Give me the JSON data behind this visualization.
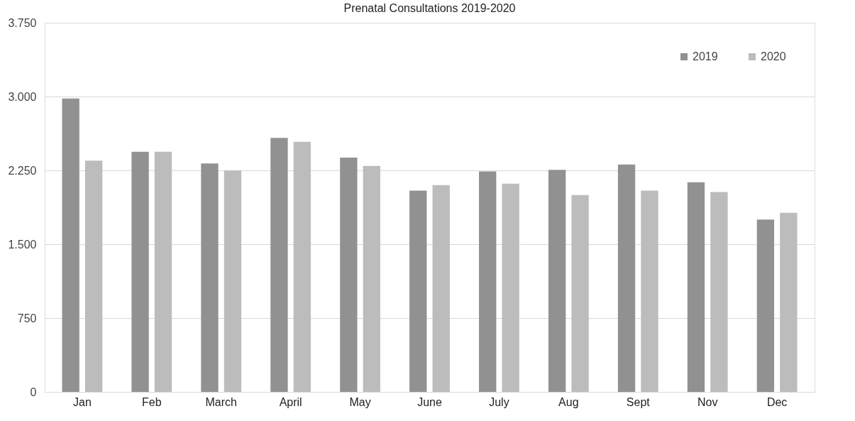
{
  "chart_data": {
    "type": "bar",
    "title": "Prenatal Consultations 2019-2020",
    "categories": [
      "Jan",
      "Feb",
      "March",
      "April",
      "May",
      "June",
      "July",
      "Aug",
      "Sept",
      "Nov",
      "Dec"
    ],
    "series": [
      {
        "name": "2019",
        "color": "#919191",
        "values": [
          2980,
          2440,
          2320,
          2580,
          2380,
          2045,
          2240,
          2255,
          2310,
          2130,
          1750
        ]
      },
      {
        "name": "2020",
        "color": "#bcbcbc",
        "values": [
          2350,
          2440,
          2250,
          2540,
          2295,
          2100,
          2115,
          2000,
          2045,
          2030,
          1820
        ]
      }
    ],
    "ylim": [
      0,
      3750
    ],
    "yticks": [
      0,
      750,
      {
        "value": 1500,
        "label": "1.500"
      },
      {
        "value": 2250,
        "label": "2.250"
      },
      {
        "value": 3000,
        "label": "3.000"
      },
      {
        "value": 3750,
        "label": "3.750"
      }
    ],
    "grid": "y",
    "legend": "top right"
  }
}
